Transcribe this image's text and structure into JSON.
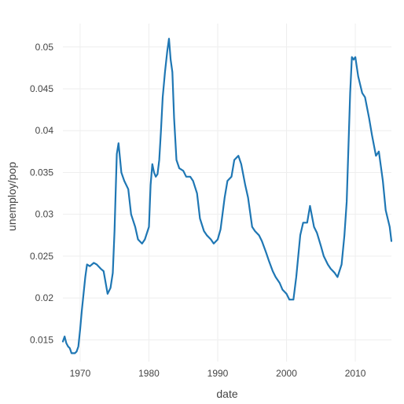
{
  "chart_data": {
    "type": "line",
    "title": "",
    "xlabel": "date",
    "ylabel": "unemploy/pop",
    "x_type": "date",
    "xlim": [
      "1967-07-01",
      "2015-04-01"
    ],
    "ylim": [
      0.0124,
      0.0528
    ],
    "x_ticks": [
      {
        "value": "1970-01-01",
        "label": "1970"
      },
      {
        "value": "1980-01-01",
        "label": "1980"
      },
      {
        "value": "1990-01-01",
        "label": "1990"
      },
      {
        "value": "2000-01-01",
        "label": "2000"
      },
      {
        "value": "2010-01-01",
        "label": "2010"
      }
    ],
    "y_ticks": [
      {
        "value": 0.015,
        "label": "0.015"
      },
      {
        "value": 0.02,
        "label": "0.02"
      },
      {
        "value": 0.025,
        "label": "0.025"
      },
      {
        "value": 0.03,
        "label": "0.03"
      },
      {
        "value": 0.035,
        "label": "0.035"
      },
      {
        "value": 0.04,
        "label": "0.04"
      },
      {
        "value": 0.045,
        "label": "0.045"
      },
      {
        "value": 0.05,
        "label": "0.05"
      }
    ],
    "grid": true,
    "line_color": "#1f77b4",
    "series": [
      {
        "x": [
          "1967-07-01",
          "1967-10-01",
          "1968-01-01",
          "1968-04-01",
          "1968-07-01",
          "1968-10-01",
          "1969-01-01",
          "1969-04-01",
          "1969-07-01",
          "1969-10-01",
          "1970-01-01",
          "1970-04-01",
          "1970-07-01",
          "1970-10-01",
          "1971-01-01",
          "1971-06-01",
          "1972-01-01",
          "1972-06-01",
          "1973-01-01",
          "1973-06-01",
          "1974-01-01",
          "1974-06-01",
          "1974-10-01",
          "1975-01-01",
          "1975-03-01",
          "1975-05-01",
          "1975-08-01",
          "1976-01-01",
          "1976-06-01",
          "1977-01-01",
          "1977-06-01",
          "1978-01-01",
          "1978-06-01",
          "1979-01-01",
          "1979-06-01",
          "1980-01-01",
          "1980-04-01",
          "1980-07-01",
          "1980-10-01",
          "1981-01-01",
          "1981-04-01",
          "1981-07-01",
          "1981-10-01",
          "1982-01-01",
          "1982-05-01",
          "1982-09-01",
          "1982-12-01",
          "1983-03-01",
          "1983-06-01",
          "1983-09-01",
          "1984-01-01",
          "1984-06-01",
          "1985-01-01",
          "1985-06-01",
          "1986-01-01",
          "1986-06-01",
          "1987-01-01",
          "1987-06-01",
          "1988-01-01",
          "1988-06-01",
          "1989-01-01",
          "1989-06-01",
          "1990-01-01",
          "1990-06-01",
          "1991-01-01",
          "1991-06-01",
          "1992-01-01",
          "1992-06-01",
          "1993-01-01",
          "1993-06-01",
          "1994-01-01",
          "1994-06-01",
          "1995-01-01",
          "1995-06-01",
          "1996-01-01",
          "1996-06-01",
          "1997-01-01",
          "1997-06-01",
          "1998-01-01",
          "1998-06-01",
          "1999-01-01",
          "1999-06-01",
          "2000-01-01",
          "2000-06-01",
          "2001-01-01",
          "2001-06-01",
          "2002-01-01",
          "2002-06-01",
          "2003-01-01",
          "2003-06-01",
          "2004-01-01",
          "2004-06-01",
          "2005-01-01",
          "2005-06-01",
          "2006-01-01",
          "2006-06-01",
          "2007-01-01",
          "2007-06-01",
          "2008-01-01",
          "2008-06-01",
          "2008-10-01",
          "2009-01-01",
          "2009-04-01",
          "2009-07-01",
          "2009-10-01",
          "2010-01-01",
          "2010-06-01",
          "2011-01-01",
          "2011-06-01",
          "2012-01-01",
          "2012-06-01",
          "2013-01-01",
          "2013-06-01",
          "2014-01-01",
          "2014-06-01",
          "2015-01-01",
          "2015-04-01"
        ],
        "y": [
          0.0148,
          0.0154,
          0.0146,
          0.0142,
          0.014,
          0.0134,
          0.0134,
          0.0134,
          0.0136,
          0.0142,
          0.0162,
          0.0185,
          0.0205,
          0.0225,
          0.024,
          0.0238,
          0.0242,
          0.024,
          0.0235,
          0.0232,
          0.0205,
          0.0212,
          0.023,
          0.028,
          0.0325,
          0.0372,
          0.0385,
          0.035,
          0.034,
          0.033,
          0.03,
          0.0285,
          0.027,
          0.0265,
          0.027,
          0.0285,
          0.0335,
          0.036,
          0.035,
          0.0345,
          0.0348,
          0.0365,
          0.04,
          0.044,
          0.047,
          0.0495,
          0.051,
          0.0485,
          0.047,
          0.0415,
          0.0365,
          0.0355,
          0.0352,
          0.0345,
          0.0345,
          0.034,
          0.0325,
          0.0295,
          0.028,
          0.0275,
          0.027,
          0.0265,
          0.027,
          0.0282,
          0.032,
          0.034,
          0.0345,
          0.0365,
          0.037,
          0.036,
          0.0335,
          0.032,
          0.0285,
          0.028,
          0.0275,
          0.0268,
          0.0255,
          0.0245,
          0.0232,
          0.0225,
          0.0218,
          0.021,
          0.0205,
          0.0198,
          0.0198,
          0.0225,
          0.0275,
          0.029,
          0.029,
          0.031,
          0.0285,
          0.0278,
          0.0262,
          0.025,
          0.024,
          0.0235,
          0.023,
          0.0225,
          0.024,
          0.0275,
          0.0315,
          0.038,
          0.0445,
          0.0488,
          0.0485,
          0.0488,
          0.0465,
          0.0445,
          0.044,
          0.0415,
          0.0395,
          0.037,
          0.0375,
          0.034,
          0.0305,
          0.0285,
          0.0268
        ]
      }
    ]
  }
}
